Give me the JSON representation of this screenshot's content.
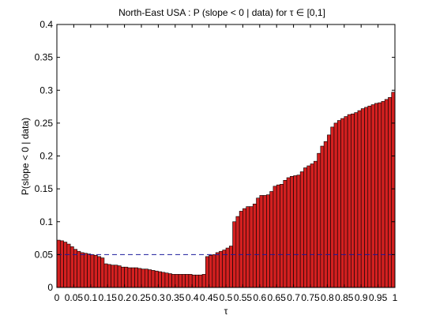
{
  "chart_data": {
    "type": "bar",
    "title": "North-East USA : P (slope < 0 | data) for τ ∈ [0,1]",
    "xlabel": "τ",
    "ylabel": "P(slope < 0 | data)",
    "xlim": [
      0,
      1
    ],
    "ylim": [
      0,
      0.4
    ],
    "x_ticks": [
      "0",
      "0.05",
      "0.1",
      "0.15",
      "0.2",
      "0.25",
      "0.3",
      "0.35",
      "0.4",
      "0.45",
      "0.5",
      "0.55",
      "0.6",
      "0.65",
      "0.7",
      "0.75",
      "0.8",
      "0.85",
      "0.9",
      "0.95",
      "1"
    ],
    "y_ticks": [
      "0",
      "0.05",
      "0.1",
      "0.15",
      "0.2",
      "0.25",
      "0.3",
      "0.35",
      "0.4"
    ],
    "bar_color": "#d42020",
    "bar_edge_color": "#000000",
    "reference_line": {
      "y": 0.05,
      "color": "#1a1a9c",
      "style": "dashed"
    },
    "grid": false,
    "x": [
      0.005,
      0.015,
      0.025,
      0.035,
      0.045,
      0.055,
      0.065,
      0.075,
      0.085,
      0.095,
      0.105,
      0.115,
      0.125,
      0.135,
      0.145,
      0.155,
      0.165,
      0.175,
      0.185,
      0.195,
      0.205,
      0.215,
      0.225,
      0.235,
      0.245,
      0.255,
      0.265,
      0.275,
      0.285,
      0.295,
      0.305,
      0.315,
      0.325,
      0.335,
      0.345,
      0.355,
      0.365,
      0.375,
      0.385,
      0.395,
      0.405,
      0.415,
      0.425,
      0.435,
      0.445,
      0.455,
      0.465,
      0.475,
      0.485,
      0.495,
      0.505,
      0.515,
      0.525,
      0.535,
      0.545,
      0.555,
      0.565,
      0.575,
      0.585,
      0.595,
      0.605,
      0.615,
      0.625,
      0.635,
      0.645,
      0.655,
      0.665,
      0.675,
      0.685,
      0.695,
      0.705,
      0.715,
      0.725,
      0.735,
      0.745,
      0.755,
      0.765,
      0.775,
      0.785,
      0.795,
      0.805,
      0.815,
      0.825,
      0.835,
      0.845,
      0.855,
      0.865,
      0.875,
      0.885,
      0.895,
      0.905,
      0.915,
      0.925,
      0.935,
      0.945,
      0.955,
      0.965,
      0.975,
      0.985,
      0.995
    ],
    "values": [
      0.072,
      0.071,
      0.069,
      0.066,
      0.062,
      0.058,
      0.055,
      0.053,
      0.052,
      0.051,
      0.05,
      0.049,
      0.047,
      0.045,
      0.036,
      0.035,
      0.034,
      0.034,
      0.033,
      0.031,
      0.031,
      0.03,
      0.03,
      0.03,
      0.029,
      0.028,
      0.028,
      0.027,
      0.026,
      0.025,
      0.024,
      0.023,
      0.022,
      0.021,
      0.02,
      0.02,
      0.02,
      0.02,
      0.02,
      0.02,
      0.019,
      0.019,
      0.019,
      0.02,
      0.047,
      0.049,
      0.05,
      0.053,
      0.055,
      0.057,
      0.06,
      0.063,
      0.1,
      0.108,
      0.116,
      0.12,
      0.123,
      0.123,
      0.127,
      0.136,
      0.14,
      0.14,
      0.141,
      0.146,
      0.154,
      0.156,
      0.157,
      0.163,
      0.167,
      0.169,
      0.17,
      0.171,
      0.176,
      0.182,
      0.185,
      0.188,
      0.192,
      0.204,
      0.215,
      0.222,
      0.232,
      0.244,
      0.25,
      0.254,
      0.257,
      0.26,
      0.263,
      0.264,
      0.266,
      0.269,
      0.272,
      0.274,
      0.276,
      0.278,
      0.28,
      0.281,
      0.283,
      0.286,
      0.289,
      0.297
    ]
  }
}
